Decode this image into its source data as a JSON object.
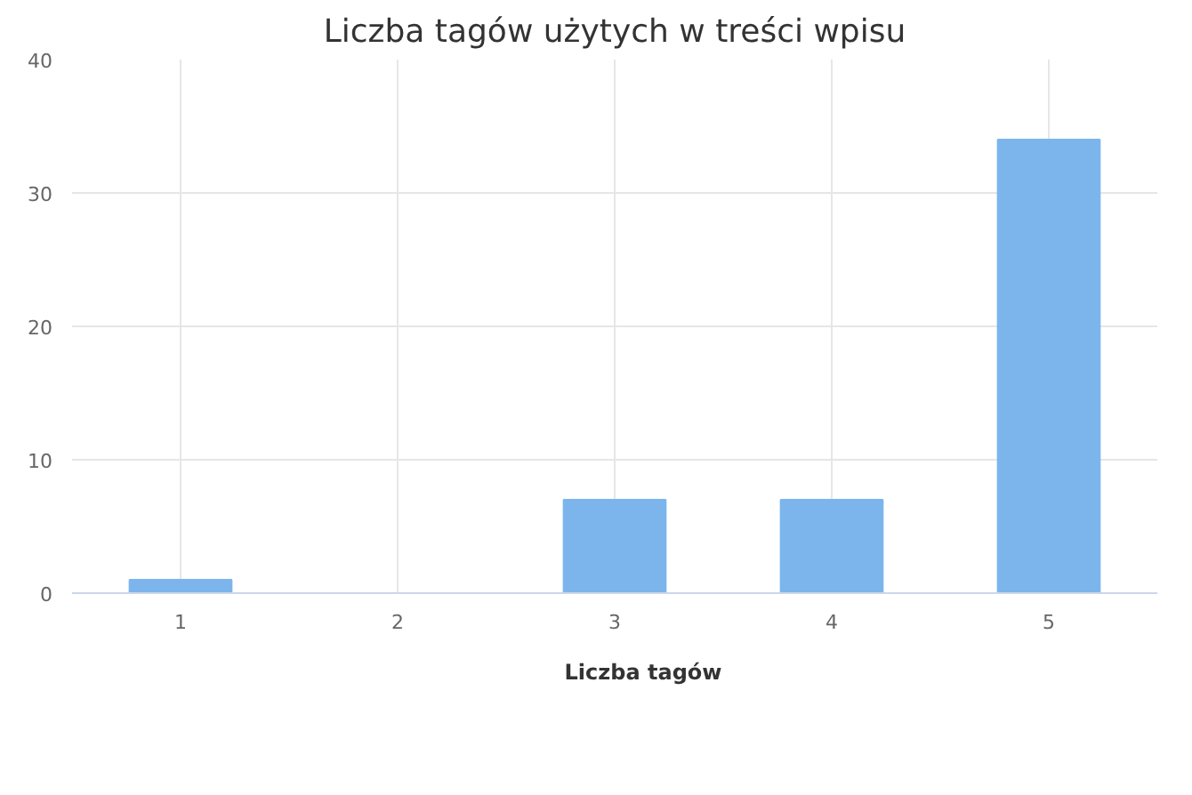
{
  "chart_data": {
    "type": "bar",
    "title": "Liczba tagów użytych w treści wpisu",
    "categories": [
      "1",
      "2",
      "3",
      "4",
      "5"
    ],
    "series": [
      {
        "name": "Liczba tagów",
        "color": "#7cb5ec",
        "values": [
          1,
          0,
          7,
          7,
          34
        ]
      }
    ],
    "ylim": [
      0,
      40
    ],
    "yticks": [
      0,
      10,
      20,
      30,
      40
    ],
    "grid": true,
    "legend": "bottom"
  }
}
